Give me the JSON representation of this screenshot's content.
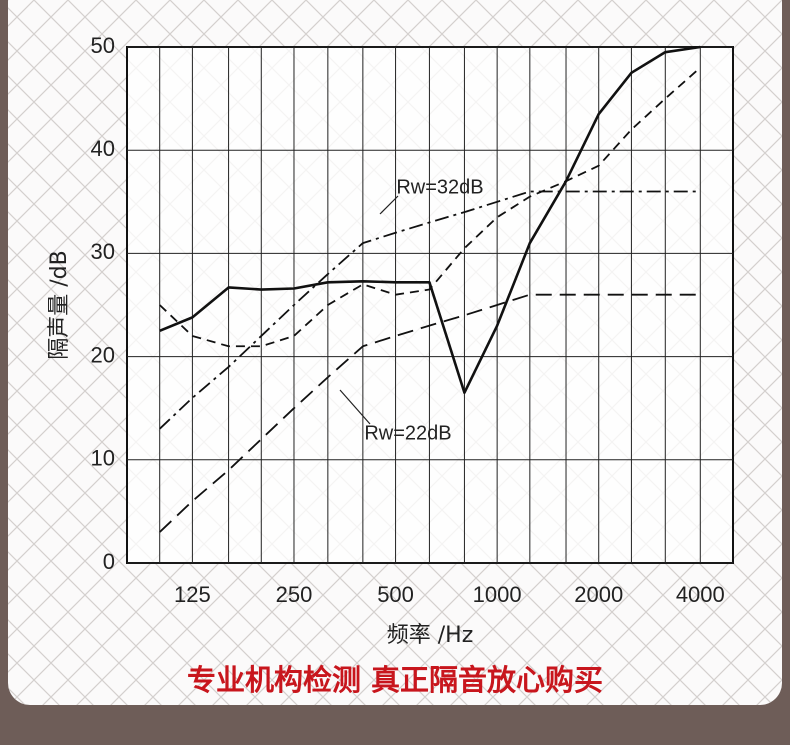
{
  "chart_data": {
    "type": "line",
    "y_label": "隔声量 /dB",
    "x_label": "频率 /Hz",
    "banner": "专业机构检测 真正隔音放心购买",
    "annotations": [
      "Rw=32dB",
      "Rw=22dB"
    ],
    "x": [
      100,
      125,
      160,
      200,
      250,
      315,
      400,
      500,
      630,
      800,
      1000,
      1250,
      1600,
      2000,
      2500,
      3150,
      4000
    ],
    "xlim": [
      80,
      5000
    ],
    "xticks": [
      125,
      250,
      500,
      1000,
      2000,
      4000
    ],
    "xscale": "log",
    "ylim": [
      0,
      50
    ],
    "yticks": [
      0,
      10,
      20,
      30,
      40,
      50
    ],
    "grid": true,
    "series": [
      {
        "color": "#111111",
        "style": "solid",
        "values": [
          22.5,
          23.8,
          26.7,
          26.5,
          26.6,
          27.2,
          27.3,
          27.2,
          27.2,
          16.5,
          23,
          31,
          37,
          43.5,
          47.5,
          49.5,
          50
        ]
      },
      {
        "color": "#111111",
        "style": "dashed",
        "values": [
          25,
          22,
          21,
          21,
          22,
          25,
          27,
          26,
          26.5,
          30.5,
          33.5,
          35.5,
          37,
          38.5,
          42,
          45,
          48
        ]
      },
      {
        "color": "#111111",
        "style": "dashdot",
        "values": [
          13,
          16,
          19,
          22,
          25,
          28,
          31,
          32,
          33,
          34,
          35,
          36,
          36,
          36,
          36,
          36,
          36
        ]
      },
      {
        "color": "#111111",
        "style": "longdash",
        "values": [
          3,
          6,
          9,
          12,
          15,
          18,
          21,
          22,
          23,
          24,
          25,
          26,
          26,
          26,
          26,
          26,
          26
        ]
      }
    ]
  }
}
